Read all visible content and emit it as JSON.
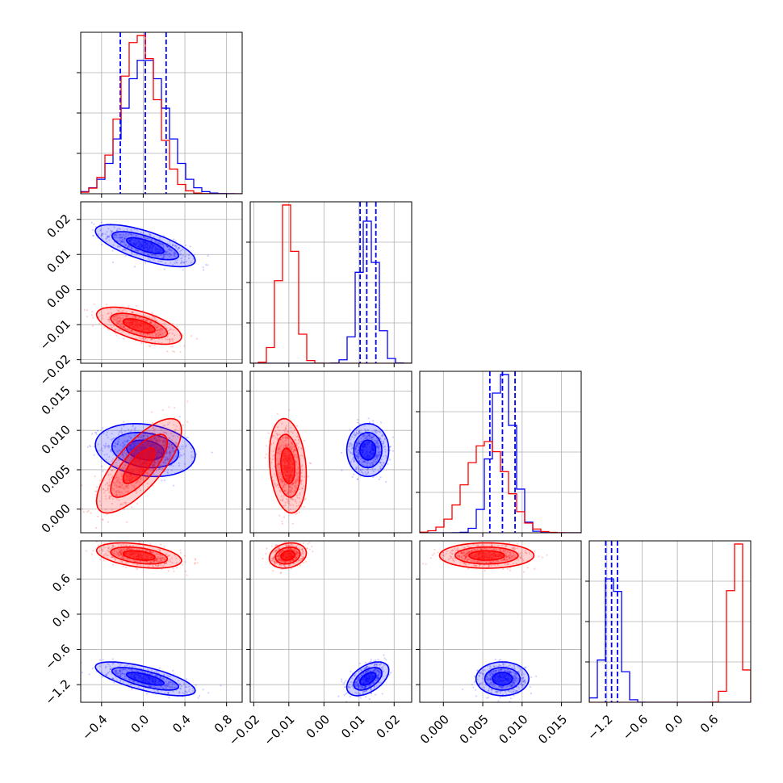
{
  "colors": {
    "series_a": "#0000ff",
    "series_b": "#ff0000",
    "quantile_line": "#0000ff",
    "grid": "#b0b0b0"
  },
  "chart_data": {
    "type": "corner",
    "grid": true,
    "quantile_line_style": "dashed",
    "parameters": [
      {
        "range": [
          -0.6,
          0.95
        ],
        "ticks": [
          -0.4,
          0.0,
          0.4,
          0.8
        ],
        "tick_labels": [
          "−0.4",
          "0.0",
          "0.4",
          "0.8"
        ]
      },
      {
        "range": [
          -0.021,
          0.025
        ],
        "ticks": [
          -0.02,
          -0.01,
          0.0,
          0.01,
          0.02
        ],
        "tick_labels": [
          "−0.02",
          "−0.01",
          "0.00",
          "0.01",
          "0.02"
        ]
      },
      {
        "range": [
          -0.003,
          0.0175
        ],
        "ticks": [
          0.0,
          0.005,
          0.01,
          0.015
        ],
        "tick_labels": [
          "0.000",
          "0.005",
          "0.010",
          "0.015"
        ]
      },
      {
        "range": [
          -1.5,
          1.25
        ],
        "ticks": [
          -1.2,
          -0.6,
          0.0,
          0.6
        ],
        "tick_labels": [
          "−1.2",
          "−0.6",
          "0.0",
          "0.6"
        ]
      }
    ],
    "series": [
      {
        "color": "#0000ff",
        "means": [
          0.02,
          0.0125,
          0.0075,
          -1.1
        ],
        "stds": [
          0.2,
          0.0025,
          0.0014,
          0.12
        ],
        "correlations": [
          [
            1,
            -0.7,
            -0.2,
            -0.7
          ],
          [
            -0.7,
            1,
            0.0,
            0.5
          ],
          [
            -0.2,
            0.0,
            1,
            0.0
          ],
          [
            -0.7,
            0.5,
            0.0,
            1
          ]
        ],
        "quantiles": [
          [
            -0.22,
            0.02,
            0.22
          ],
          [
            0.0103,
            0.0122,
            0.0148
          ],
          [
            0.0059,
            0.0075,
            0.0091
          ],
          [
            -1.22,
            -1.12,
            -1.02
          ]
        ]
      },
      {
        "color": "#ff0000",
        "means": [
          -0.04,
          -0.0103,
          0.0055,
          1.0
        ],
        "stds": [
          0.17,
          0.0022,
          0.0025,
          0.09
        ],
        "correlations": [
          [
            1,
            -0.6,
            0.75,
            -0.4
          ],
          [
            -0.6,
            1,
            -0.2,
            0.2
          ],
          [
            0.75,
            -0.2,
            1,
            0.0
          ],
          [
            -0.4,
            0.2,
            0.0,
            1
          ]
        ],
        "quantiles": null
      }
    ]
  }
}
